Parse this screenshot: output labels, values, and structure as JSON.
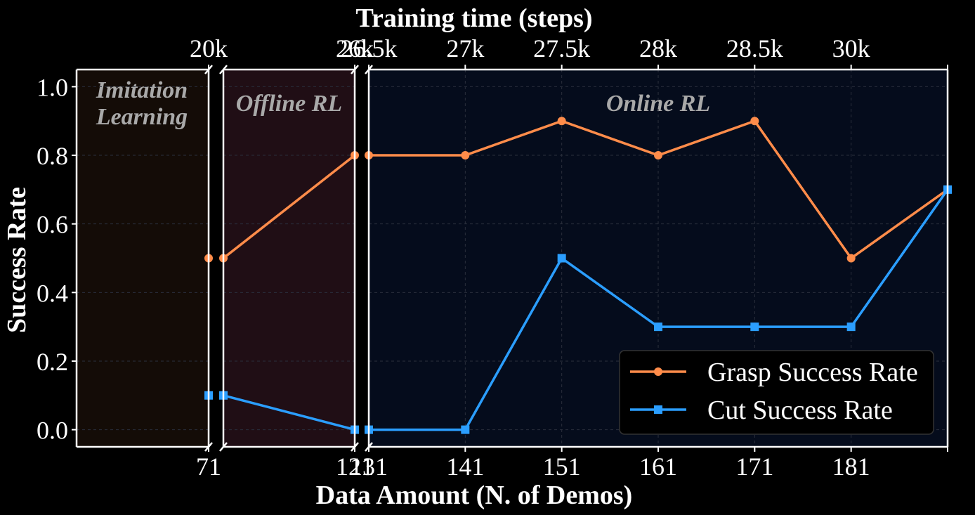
{
  "chart_data": {
    "type": "line",
    "top_axis_label": "Training time (steps)",
    "xlabel": "Data Amount (N. of Demos)",
    "ylabel": "Success Rate",
    "ylim": [
      -0.05,
      1.05
    ],
    "yticks": [
      "0.0",
      "0.2",
      "0.4",
      "0.6",
      "0.8",
      "1.0"
    ],
    "grid": true,
    "legend_position": "lower-right",
    "panels": [
      {
        "label_lines": [
          "Imitation",
          "Learning"
        ],
        "bg": "#140c07",
        "x_ticks": [
          "71"
        ],
        "top_ticks": [
          "20k"
        ]
      },
      {
        "label_lines": [
          "Offline RL"
        ],
        "bg": "#200e15",
        "x_ticks": [
          "121"
        ],
        "top_ticks": [
          "26k"
        ]
      },
      {
        "label_lines": [
          "Online RL"
        ],
        "bg": "#050c1c",
        "x_ticks": [
          "131",
          "141",
          "151",
          "161",
          "171",
          "181"
        ],
        "top_ticks": [
          "26.5k",
          "27k",
          "27.5k",
          "28k",
          "28.5k",
          "30k"
        ]
      }
    ],
    "x": [
      71,
      121,
      131,
      141,
      151,
      161,
      171,
      181
    ],
    "series": [
      {
        "name": "Grasp Success Rate",
        "color": "#ff8c4a",
        "marker": "circle",
        "values": [
          0.5,
          0.8,
          0.8,
          0.9,
          0.8,
          0.9,
          0.5,
          0.7
        ]
      },
      {
        "name": "Cut Success Rate",
        "color": "#2b9eff",
        "marker": "square",
        "values": [
          0.1,
          0.0,
          0.0,
          0.5,
          0.3,
          0.3,
          0.3,
          0.7
        ]
      }
    ]
  }
}
